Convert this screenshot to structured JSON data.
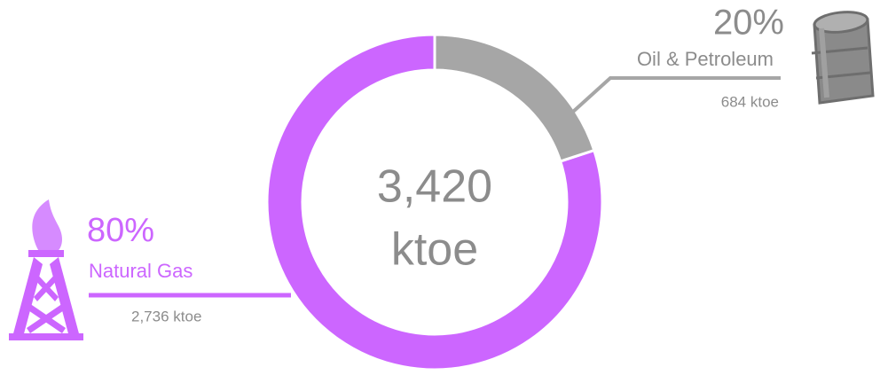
{
  "chart_data": {
    "type": "donut",
    "center": {
      "value": 3420,
      "label": "3,420"
    },
    "center_unit": "ktoe",
    "categories": [
      "Oil & Petroleum",
      "Natural Gas"
    ],
    "values": [
      20,
      80
    ],
    "value_labels": [
      "20%",
      "80%"
    ],
    "amounts": [
      684,
      2736
    ],
    "amount_labels": [
      "684 ktoe",
      "2,736 ktoe"
    ],
    "colors": [
      "#a6a6a6",
      "#cc66ff"
    ]
  }
}
